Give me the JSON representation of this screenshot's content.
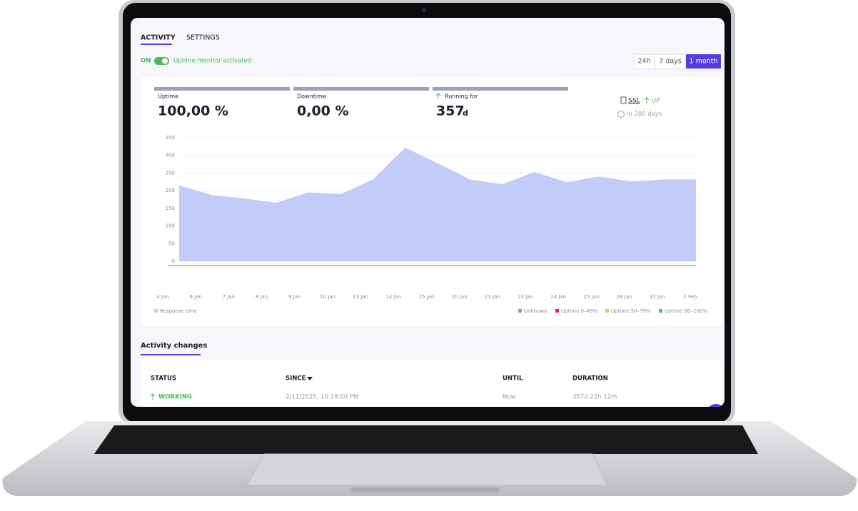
{
  "tabs": [
    "ACTIVITY",
    "SETTINGS"
  ],
  "toggle": {
    "state": "ON",
    "label": "Uptime monitor activated"
  },
  "ranges": [
    "24h",
    "7 days",
    "1 month"
  ],
  "stats": [
    {
      "label": "Uptime",
      "value": "100,00 %"
    },
    {
      "label": "Downtime",
      "value": "0,00 %"
    },
    {
      "label": "Running for",
      "value": "357",
      "unit": "d"
    }
  ],
  "ssl": {
    "label": "SSL",
    "status": "UP",
    "expiry": "in 280 days"
  },
  "chart_data": {
    "type": "area",
    "categories": [
      "4 Jan",
      "6 Jan",
      "7 Jan",
      "8 Jan",
      "9 Jan",
      "10 Jan",
      "13 Jan",
      "14 Jan",
      "15 Jan",
      "20 Jan",
      "21 Jan",
      "23 Jan",
      "24 Jan",
      "25 Jan",
      "28 Jan",
      "31 Jan",
      "2 Feb"
    ],
    "series": [
      {
        "name": "Response time",
        "color": "#c3cbf8",
        "values": [
          215,
          188,
          178,
          166,
          195,
          190,
          232,
          322,
          278,
          232,
          218,
          253,
          224,
          240,
          226,
          232,
          232
        ]
      }
    ],
    "ylim": [
      0,
      350
    ],
    "yticks": [
      0,
      50,
      100,
      150,
      200,
      250,
      300,
      350
    ],
    "grid": true,
    "status_legend": [
      {
        "name": "Unknown",
        "color": "#9a9cb0"
      },
      {
        "name": "Uptime 0–49%",
        "color": "#e0245e"
      },
      {
        "name": "Uptime 50–79%",
        "color": "#f5b877"
      },
      {
        "name": "Uptime 80–100%",
        "color": "#58c26a"
      }
    ]
  },
  "activity": {
    "title": "Activity changes",
    "columns": [
      "STATUS",
      "SINCE",
      "UNTIL",
      "DURATION"
    ],
    "rows": [
      [
        "WORKING",
        "2/11/2025, 10:19:00 PM",
        "Now",
        "357d 22h 12m"
      ]
    ]
  }
}
